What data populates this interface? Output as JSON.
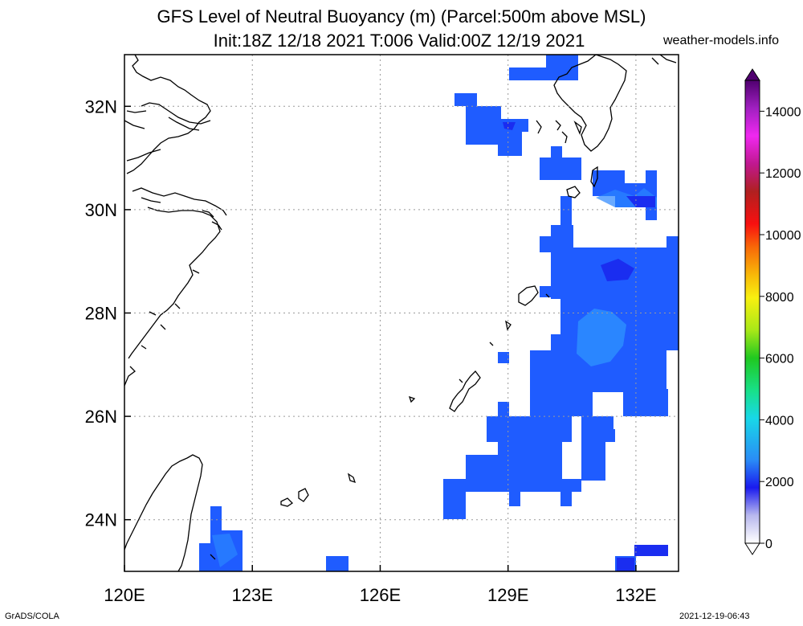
{
  "header": {
    "title_line1": "GFS Level of Neutral Buoyancy (m) (Parcel:500m above MSL)",
    "title_line2": "Init:18Z 12/18 2021 T:006 Valid:00Z 12/19 2021",
    "site": "weather-models.info"
  },
  "footer": {
    "left": "GrADS/COLA",
    "right": "2021-12-19-06:43"
  },
  "map": {
    "lon_range": [
      120,
      133
    ],
    "lat_range": [
      23,
      33
    ],
    "lon_ticks": [
      {
        "value": 120,
        "label": "120E"
      },
      {
        "value": 123,
        "label": "123E"
      },
      {
        "value": 126,
        "label": "126E"
      },
      {
        "value": 129,
        "label": "129E"
      },
      {
        "value": 132,
        "label": "132E"
      }
    ],
    "lat_ticks": [
      {
        "value": 24,
        "label": "24N"
      },
      {
        "value": 26,
        "label": "26N"
      },
      {
        "value": 28,
        "label": "28N"
      },
      {
        "value": 30,
        "label": "30N"
      },
      {
        "value": 32,
        "label": "32N"
      }
    ],
    "grid": true,
    "field_color_main": "#1f5cff",
    "field_color_light": "#2a86ff",
    "field_color_dark": "#1a2df0"
  },
  "colorbar": {
    "labels": [
      "0",
      "2000",
      "4000",
      "6000",
      "8000",
      "10000",
      "12000",
      "14000"
    ],
    "max": 15000
  }
}
